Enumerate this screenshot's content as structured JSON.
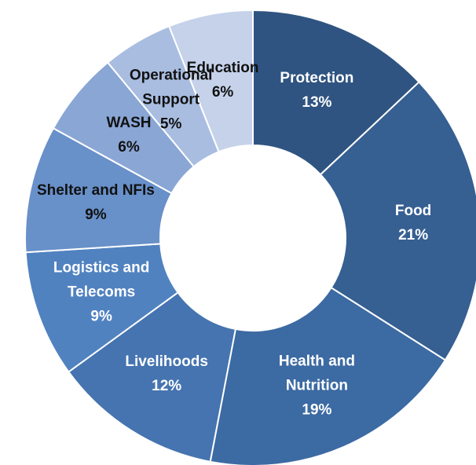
{
  "chart_data": {
    "type": "donut",
    "categories": [
      "Protection",
      "Food",
      "Health and Nutrition",
      "Livelihoods",
      "Logistics and Telecoms",
      "Shelter and NFIs",
      "WASH",
      "Operational Support",
      "Education"
    ],
    "values": [
      13,
      21,
      19,
      12,
      9,
      9,
      6,
      5,
      6
    ],
    "value_labels": [
      "13%",
      "21%",
      "19%",
      "12%",
      "9%",
      "9%",
      "6%",
      "5%",
      "6%"
    ],
    "colors": [
      "#2f5481",
      "#365f92",
      "#3c6aa3",
      "#4574b0",
      "#5182c0",
      "#6890c9",
      "#8aa6d5",
      "#a8bde0",
      "#c5d2ea"
    ],
    "label_colors": [
      "#ffffff",
      "#ffffff",
      "#ffffff",
      "#ffffff",
      "#ffffff",
      "#111111",
      "#111111",
      "#111111",
      "#111111"
    ]
  }
}
